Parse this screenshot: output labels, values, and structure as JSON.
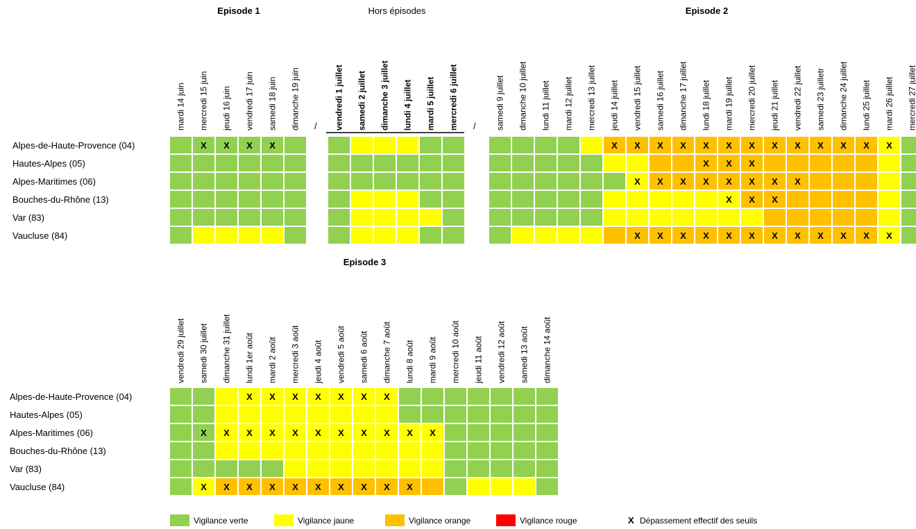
{
  "departments": [
    "Alpes-de-Haute-Provence (04)",
    "Hautes-Alpes (05)",
    "Alpes-Maritimes (06)",
    "Bouches-du-Rhône (13)",
    "Var (83)",
    "Vaucluse (84)"
  ],
  "separator": "/",
  "block1": {
    "groups": [
      {
        "title": "Episode 1",
        "title_bold": true,
        "header_bold": false,
        "days": [
          "mardi 14 juin",
          "mercredi 15 juin",
          "jeudi 16 juin",
          "vendredi 17 juin",
          "samedi 18 juin",
          "dimanche 19 juin"
        ],
        "cells": [
          [
            "G",
            "Gx",
            "Gx",
            "Gx",
            "Gx",
            "G"
          ],
          [
            "G",
            "G",
            "G",
            "G",
            "G",
            "G"
          ],
          [
            "G",
            "G",
            "G",
            "G",
            "G",
            "G"
          ],
          [
            "G",
            "G",
            "G",
            "G",
            "G",
            "G"
          ],
          [
            "G",
            "G",
            "G",
            "G",
            "G",
            "G"
          ],
          [
            "G",
            "Y",
            "Y",
            "Y",
            "Y",
            "G"
          ]
        ]
      },
      {
        "title": "Hors épisodes",
        "title_bold": false,
        "header_bold": true,
        "days": [
          "vendredi 1 juillet",
          "samedi 2 juillet",
          "dimanche 3 juillet",
          "lundi 4 juillet",
          "mardi 5 juillet",
          "mercredi 6 juillet"
        ],
        "cells": [
          [
            "G",
            "Y",
            "Y",
            "Y",
            "G",
            "G"
          ],
          [
            "G",
            "G",
            "G",
            "G",
            "G",
            "G"
          ],
          [
            "G",
            "G",
            "G",
            "G",
            "G",
            "G"
          ],
          [
            "G",
            "Y",
            "Y",
            "Y",
            "G",
            "G"
          ],
          [
            "G",
            "Y",
            "Y",
            "Y",
            "Y",
            "G"
          ],
          [
            "G",
            "Y",
            "Y",
            "Y",
            "G",
            "G"
          ]
        ]
      },
      {
        "title": "Episode 2",
        "title_bold": true,
        "header_bold": false,
        "days": [
          "samedi 9 juillet",
          "dimanche 10 juillet",
          "lundi 11 juillet",
          "mardi 12 juillet",
          "mercredi 13 juillet",
          "jeudi 14 juillet",
          "vendredi 15 juillet",
          "samedi 16 juillet",
          "dimanche 17 juillet",
          "lundi 18 juillet",
          "mardi 19 juillet",
          "mercredi 20 juillet",
          "jeudi 21 juillet",
          "vendredi 22 juillet",
          "samedi 23 juilletr",
          "dimanche 24 juillet",
          "lundi 25 juillet",
          "mardi 26 juillet",
          "mercredi 27 juillet"
        ],
        "cells": [
          [
            "G",
            "G",
            "G",
            "G",
            "Y",
            "Ox",
            "Ox",
            "Ox",
            "Ox",
            "Ox",
            "Ox",
            "Ox",
            "Ox",
            "Ox",
            "Ox",
            "Ox",
            "Ox",
            "Yx",
            "G"
          ],
          [
            "G",
            "G",
            "G",
            "G",
            "G",
            "Y",
            "Y",
            "O",
            "O",
            "Ox",
            "Ox",
            "Ox",
            "O",
            "O",
            "O",
            "O",
            "O",
            "Y",
            "G"
          ],
          [
            "G",
            "G",
            "G",
            "G",
            "G",
            "G",
            "Yx",
            "Ox",
            "Ox",
            "Ox",
            "Ox",
            "Ox",
            "Ox",
            "Ox",
            "O",
            "O",
            "O",
            "Y",
            "G"
          ],
          [
            "G",
            "G",
            "G",
            "G",
            "G",
            "Y",
            "Y",
            "Y",
            "Y",
            "Y",
            "Yx",
            "Ox",
            "Ox",
            "O",
            "O",
            "O",
            "O",
            "Y",
            "G"
          ],
          [
            "G",
            "G",
            "G",
            "G",
            "G",
            "Y",
            "Y",
            "Y",
            "Y",
            "Y",
            "Y",
            "Y",
            "O",
            "O",
            "O",
            "O",
            "O",
            "Y",
            "G"
          ],
          [
            "G",
            "Y",
            "Y",
            "Y",
            "Y",
            "O",
            "Ox",
            "Ox",
            "Ox",
            "Ox",
            "Ox",
            "Ox",
            "Ox",
            "Ox",
            "Ox",
            "Ox",
            "Ox",
            "Yx",
            "G"
          ]
        ]
      }
    ]
  },
  "block2": {
    "groups": [
      {
        "title": "Episode 3",
        "title_bold": true,
        "header_bold": false,
        "days": [
          "vendredi 29 juillet",
          "samedi 30 juillet",
          "dimanche 31 juillet",
          "lundi 1er août",
          "mardi 2 août",
          "mercredi 3 août",
          "jeudi 4 août",
          "vendredi 5 août",
          "samedi 6 août",
          "dimanche 7 août",
          "lundi 8 août",
          "mardi 9 août",
          "mercredi 10 août",
          "jeudi 11 août",
          "vendredi 12 août",
          "samedi 13 août",
          "dimanche 14 août"
        ],
        "cells": [
          [
            "G",
            "G",
            "Y",
            "Yx",
            "Yx",
            "Yx",
            "Yx",
            "Yx",
            "Yx",
            "Yx",
            "G",
            "G",
            "G",
            "G",
            "G",
            "G",
            "G"
          ],
          [
            "G",
            "G",
            "Y",
            "Y",
            "Y",
            "Y",
            "Y",
            "Y",
            "Y",
            "Y",
            "G",
            "G",
            "G",
            "G",
            "G",
            "G",
            "G"
          ],
          [
            "G",
            "Gx",
            "Yx",
            "Yx",
            "Yx",
            "Yx",
            "Yx",
            "Yx",
            "Yx",
            "Yx",
            "Yx",
            "Yx",
            "G",
            "G",
            "G",
            "G",
            "G"
          ],
          [
            "G",
            "G",
            "Y",
            "Y",
            "Y",
            "Y",
            "Y",
            "Y",
            "Y",
            "Y",
            "Y",
            "Y",
            "G",
            "G",
            "G",
            "G",
            "G"
          ],
          [
            "G",
            "G",
            "G",
            "G",
            "G",
            "Y",
            "Y",
            "Y",
            "Y",
            "Y",
            "Y",
            "Y",
            "G",
            "G",
            "G",
            "G",
            "G"
          ],
          [
            "G",
            "Yx",
            "Ox",
            "Ox",
            "Ox",
            "Ox",
            "Ox",
            "Ox",
            "Ox",
            "Ox",
            "Ox",
            "O",
            "G",
            "Y",
            "Y",
            "Y",
            "G"
          ]
        ]
      }
    ]
  },
  "legend": {
    "levels": [
      {
        "key": "G",
        "label": "Vigilance verte",
        "color": "#92d050"
      },
      {
        "key": "Y",
        "label": "Vigilance jaune",
        "color": "#ffff00"
      },
      {
        "key": "O",
        "label": "Vigilance orange",
        "color": "#ffc000"
      },
      {
        "key": "R",
        "label": "Vigilance rouge",
        "color": "#ff0000"
      }
    ],
    "marker": "X",
    "marker_label": "Dépassement effectif des seuils"
  }
}
